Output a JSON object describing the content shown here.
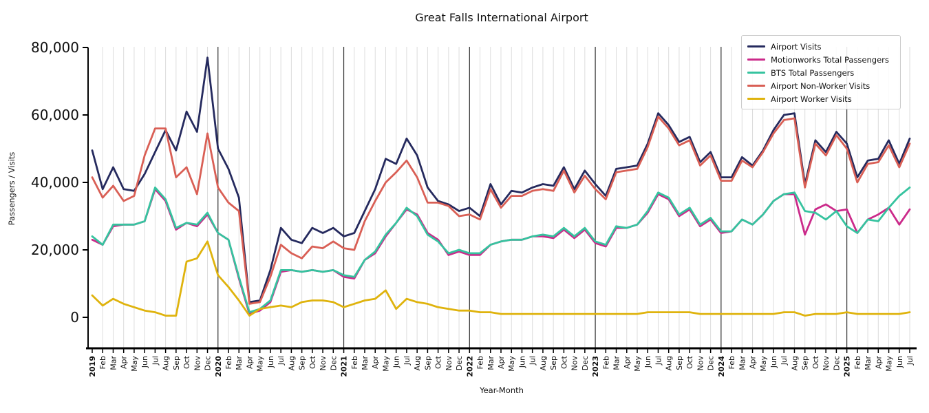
{
  "title": "Great Falls International Airport",
  "axes": {
    "y_label": "Passengers / Visits",
    "x_label": "Year-Month"
  },
  "chart_data": {
    "type": "line",
    "title": "Great Falls International Airport",
    "xlabel": "Year-Month",
    "ylabel": "Passengers / Visits",
    "x_start": {
      "year": 2019,
      "month": 1
    },
    "x_end": {
      "year": 2025,
      "month": 7
    },
    "n_points": 79,
    "month_abbrevs": [
      "Jan",
      "Feb",
      "Mar",
      "Apr",
      "May",
      "Jun",
      "Jul",
      "Aug",
      "Sep",
      "Oct",
      "Nov",
      "Dec"
    ],
    "ylim": [
      0,
      80000
    ],
    "y_tick_values": [
      0,
      20000,
      40000,
      60000,
      80000
    ],
    "grid": "vertical gridline each month, dark vertical line at each January",
    "legend_position": "upper right",
    "series": [
      {
        "name": "Airport Visits",
        "color": "#252a5e",
        "values": [
          49500,
          38000,
          44500,
          38000,
          37500,
          42500,
          49000,
          55500,
          49500,
          61000,
          55000,
          77000,
          50000,
          44000,
          35500,
          4500,
          5000,
          14000,
          26500,
          23000,
          22000,
          26500,
          25000,
          26500,
          24000,
          25000,
          31500,
          38000,
          47000,
          45500,
          53000,
          48000,
          38500,
          34500,
          33500,
          31500,
          32500,
          30000,
          39500,
          33500,
          37500,
          37000,
          38500,
          39500,
          39000,
          44500,
          38000,
          43500,
          39500,
          36000,
          44000,
          44500,
          45000,
          51500,
          60500,
          57000,
          52000,
          53500,
          46000,
          49000,
          41500,
          41500,
          47500,
          45000,
          49500,
          55500,
          60000,
          60500,
          39500,
          52500,
          49000,
          55000,
          51500,
          41500,
          46500,
          47000,
          52500,
          45500,
          53000
        ]
      },
      {
        "name": "Motionworks Total Passengers",
        "color": "#cb2a8a",
        "values": [
          23000,
          21500,
          27000,
          27500,
          27500,
          28500,
          38000,
          34500,
          26000,
          28000,
          27000,
          30500,
          25000,
          23000,
          11500,
          1000,
          2000,
          4500,
          13500,
          14000,
          13500,
          14000,
          13500,
          14000,
          12000,
          11500,
          17000,
          19000,
          24000,
          28000,
          32000,
          30500,
          25000,
          23000,
          18500,
          19500,
          18500,
          18500,
          21500,
          22500,
          23000,
          23000,
          24000,
          24000,
          23500,
          26000,
          23500,
          26000,
          22000,
          21000,
          26500,
          26500,
          27500,
          31000,
          36500,
          35000,
          30000,
          32000,
          27000,
          29000,
          25000,
          25500,
          29000,
          27500,
          30500,
          34500,
          36500,
          36500,
          24500,
          32000,
          33500,
          31500,
          32000,
          25000,
          29000,
          30500,
          32500,
          27500,
          32000
        ]
      },
      {
        "name": "BTS Total Passengers",
        "color": "#36c39f",
        "values": [
          24000,
          21500,
          27500,
          27500,
          27500,
          28500,
          38500,
          35000,
          26500,
          28000,
          27500,
          31000,
          25000,
          23000,
          12000,
          1500,
          2500,
          5000,
          14000,
          14000,
          13500,
          14000,
          13500,
          14000,
          12500,
          12000,
          17000,
          19500,
          24500,
          28000,
          32500,
          30000,
          24500,
          22500,
          19000,
          20000,
          19000,
          19000,
          21500,
          22500,
          23000,
          23000,
          24000,
          24500,
          24000,
          26500,
          24000,
          26500,
          22500,
          21500,
          27000,
          26500,
          27500,
          31500,
          37000,
          35500,
          30500,
          32500,
          27500,
          29500,
          25500,
          25500,
          29000,
          27500,
          30500,
          34500,
          36500,
          37000,
          31500,
          31000,
          29000,
          31500,
          27000,
          25000,
          29000,
          28500,
          32500,
          36000,
          38500
        ]
      },
      {
        "name": "Airport Non-Worker Visits",
        "color": "#d95f55",
        "values": [
          41500,
          35500,
          39000,
          34500,
          36000,
          48000,
          56000,
          56000,
          41500,
          44500,
          36500,
          54500,
          38500,
          34000,
          31500,
          4000,
          4500,
          12000,
          21500,
          19000,
          17500,
          21000,
          20500,
          22500,
          20500,
          20000,
          28500,
          34500,
          40000,
          43000,
          46500,
          41500,
          34000,
          34000,
          33000,
          30000,
          30500,
          29000,
          38000,
          32500,
          36000,
          36000,
          37500,
          38000,
          37500,
          43500,
          37000,
          42000,
          38000,
          35000,
          43000,
          43500,
          44000,
          50500,
          59500,
          56000,
          51000,
          52500,
          45000,
          48000,
          40500,
          40500,
          46500,
          44500,
          49000,
          54500,
          58500,
          59000,
          38500,
          51500,
          48000,
          54000,
          50000,
          40000,
          45500,
          46000,
          51000,
          44500,
          51500
        ]
      },
      {
        "name": "Airport Worker Visits",
        "color": "#dfb30d",
        "values": [
          6500,
          3500,
          5500,
          4000,
          3000,
          2000,
          1500,
          500,
          500,
          16500,
          17500,
          22500,
          12500,
          9000,
          5000,
          500,
          2500,
          3000,
          3500,
          3000,
          4500,
          5000,
          5000,
          4500,
          3000,
          4000,
          5000,
          5500,
          8000,
          2500,
          5500,
          4500,
          4000,
          3000,
          2500,
          2000,
          2000,
          1500,
          1500,
          1000,
          1000,
          1000,
          1000,
          1000,
          1000,
          1000,
          1000,
          1000,
          1000,
          1000,
          1000,
          1000,
          1000,
          1500,
          1500,
          1500,
          1500,
          1500,
          1000,
          1000,
          1000,
          1000,
          1000,
          1000,
          1000,
          1000,
          1500,
          1500,
          500,
          1000,
          1000,
          1000,
          1500,
          1000,
          1000,
          1000,
          1000,
          1000,
          1500
        ]
      }
    ]
  }
}
